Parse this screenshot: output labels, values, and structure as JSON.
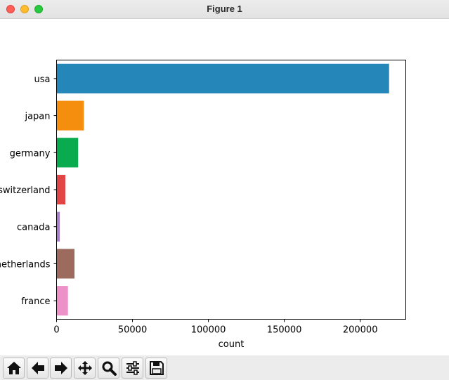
{
  "window": {
    "title": "Figure 1"
  },
  "toolbar": {
    "buttons": [
      {
        "name": "home-button",
        "icon": "home-icon"
      },
      {
        "name": "back-button",
        "icon": "arrow-left-icon"
      },
      {
        "name": "forward-button",
        "icon": "arrow-right-icon"
      },
      {
        "name": "pan-button",
        "icon": "move-icon"
      },
      {
        "name": "zoom-button",
        "icon": "magnifier-icon"
      },
      {
        "name": "configure-subplots-button",
        "icon": "sliders-icon"
      },
      {
        "name": "save-button",
        "icon": "floppy-disk-icon"
      }
    ]
  },
  "chart_data": {
    "type": "bar",
    "orientation": "horizontal",
    "categories": [
      "usa",
      "japan",
      "germany",
      "switzerland",
      "canada",
      "netherlands",
      "france"
    ],
    "values": [
      219000,
      18000,
      14200,
      5800,
      2100,
      11800,
      7500
    ],
    "colors": [
      "#2586ba",
      "#f58d0f",
      "#0aab4e",
      "#e14545",
      "#a67ec8",
      "#9c6b5e",
      "#ec92c9"
    ],
    "xlabel": "count",
    "ylabel": "",
    "xlim": [
      0,
      230000
    ],
    "xticks": [
      0,
      50000,
      100000,
      150000,
      200000
    ],
    "grid": false
  }
}
